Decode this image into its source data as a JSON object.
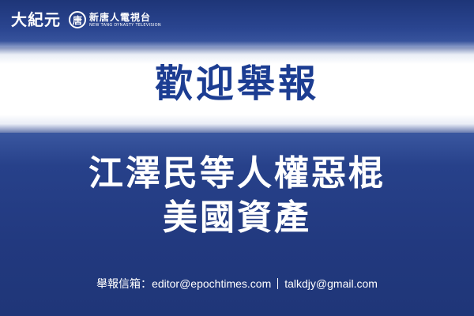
{
  "logos": {
    "epoch_times": "大紀元",
    "ntd_emblem": "唐",
    "ntd_chinese": "新唐人電視台",
    "ntd_english": "NEW TANG DYNASTY TELEVISION"
  },
  "headline": "歡迎舉報",
  "title": {
    "line1": "江澤民等人權惡棍",
    "line2": "美國資產"
  },
  "contact": {
    "label": "舉報信箱：",
    "email1": "editor@epochtimes.com",
    "email2": "talkdjy@gmail.com"
  },
  "colors": {
    "background": "#26408a",
    "headline": "#1c3d92",
    "text_light": "#ffffff"
  }
}
